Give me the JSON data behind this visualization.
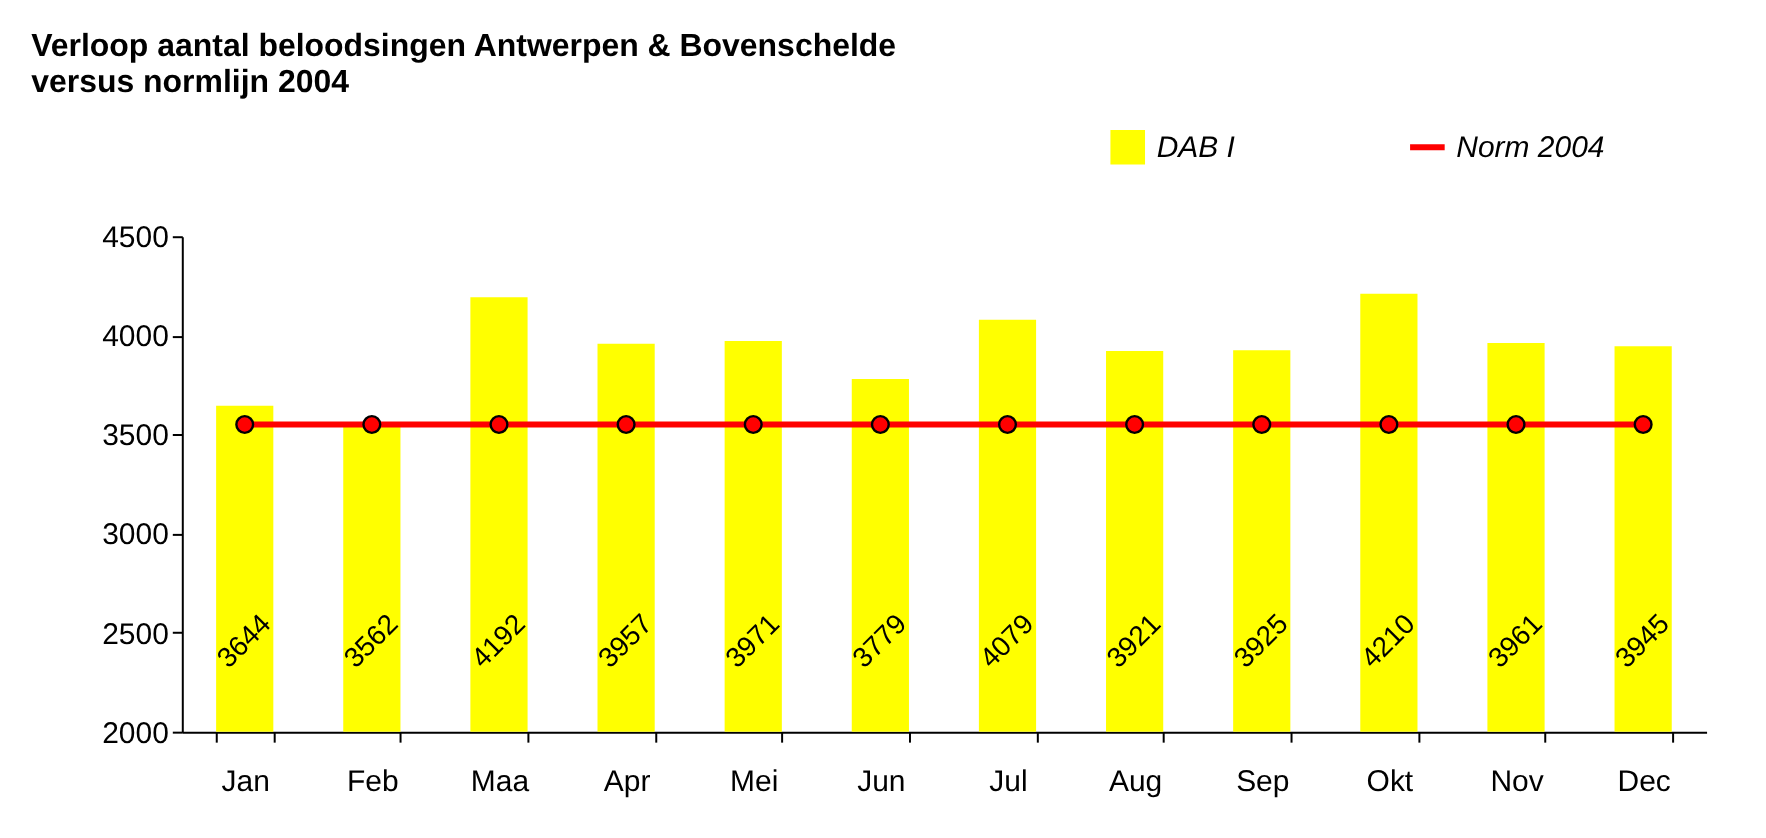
{
  "chart_data": {
    "type": "bar",
    "title": [
      "Verloop aantal beloodsingen Antwerpen & Bovenschelde",
      "versus normlijn 2004"
    ],
    "categories": [
      "Jan",
      "Feb",
      "Maa",
      "Apr",
      "Mei",
      "Jun",
      "Jul",
      "Aug",
      "Sep",
      "Okt",
      "Nov",
      "Dec"
    ],
    "series": [
      {
        "name": "DAB I",
        "color": "#ffff00",
        "values": [
          3644,
          3562,
          4192,
          3957,
          3971,
          3779,
          4079,
          3921,
          3925,
          4210,
          3961,
          3945
        ],
        "value_labels": [
          "3644",
          "3562",
          "4192",
          "3957",
          "3971",
          "3779",
          "4079",
          "3921",
          "3925",
          "4210",
          "3961",
          "3945"
        ]
      },
      {
        "name": "Norm 2004",
        "type": "line",
        "color": "#ff0000",
        "marker": "circle",
        "values": [
          3550,
          3550,
          3550,
          3550,
          3550,
          3550,
          3550,
          3550,
          3550,
          3550,
          3550,
          3550
        ]
      }
    ],
    "ylim": [
      2000,
      4500
    ],
    "yticks": [
      2000,
      2500,
      3000,
      3500,
      4000,
      4500
    ],
    "grid": false,
    "legend": "top right"
  }
}
